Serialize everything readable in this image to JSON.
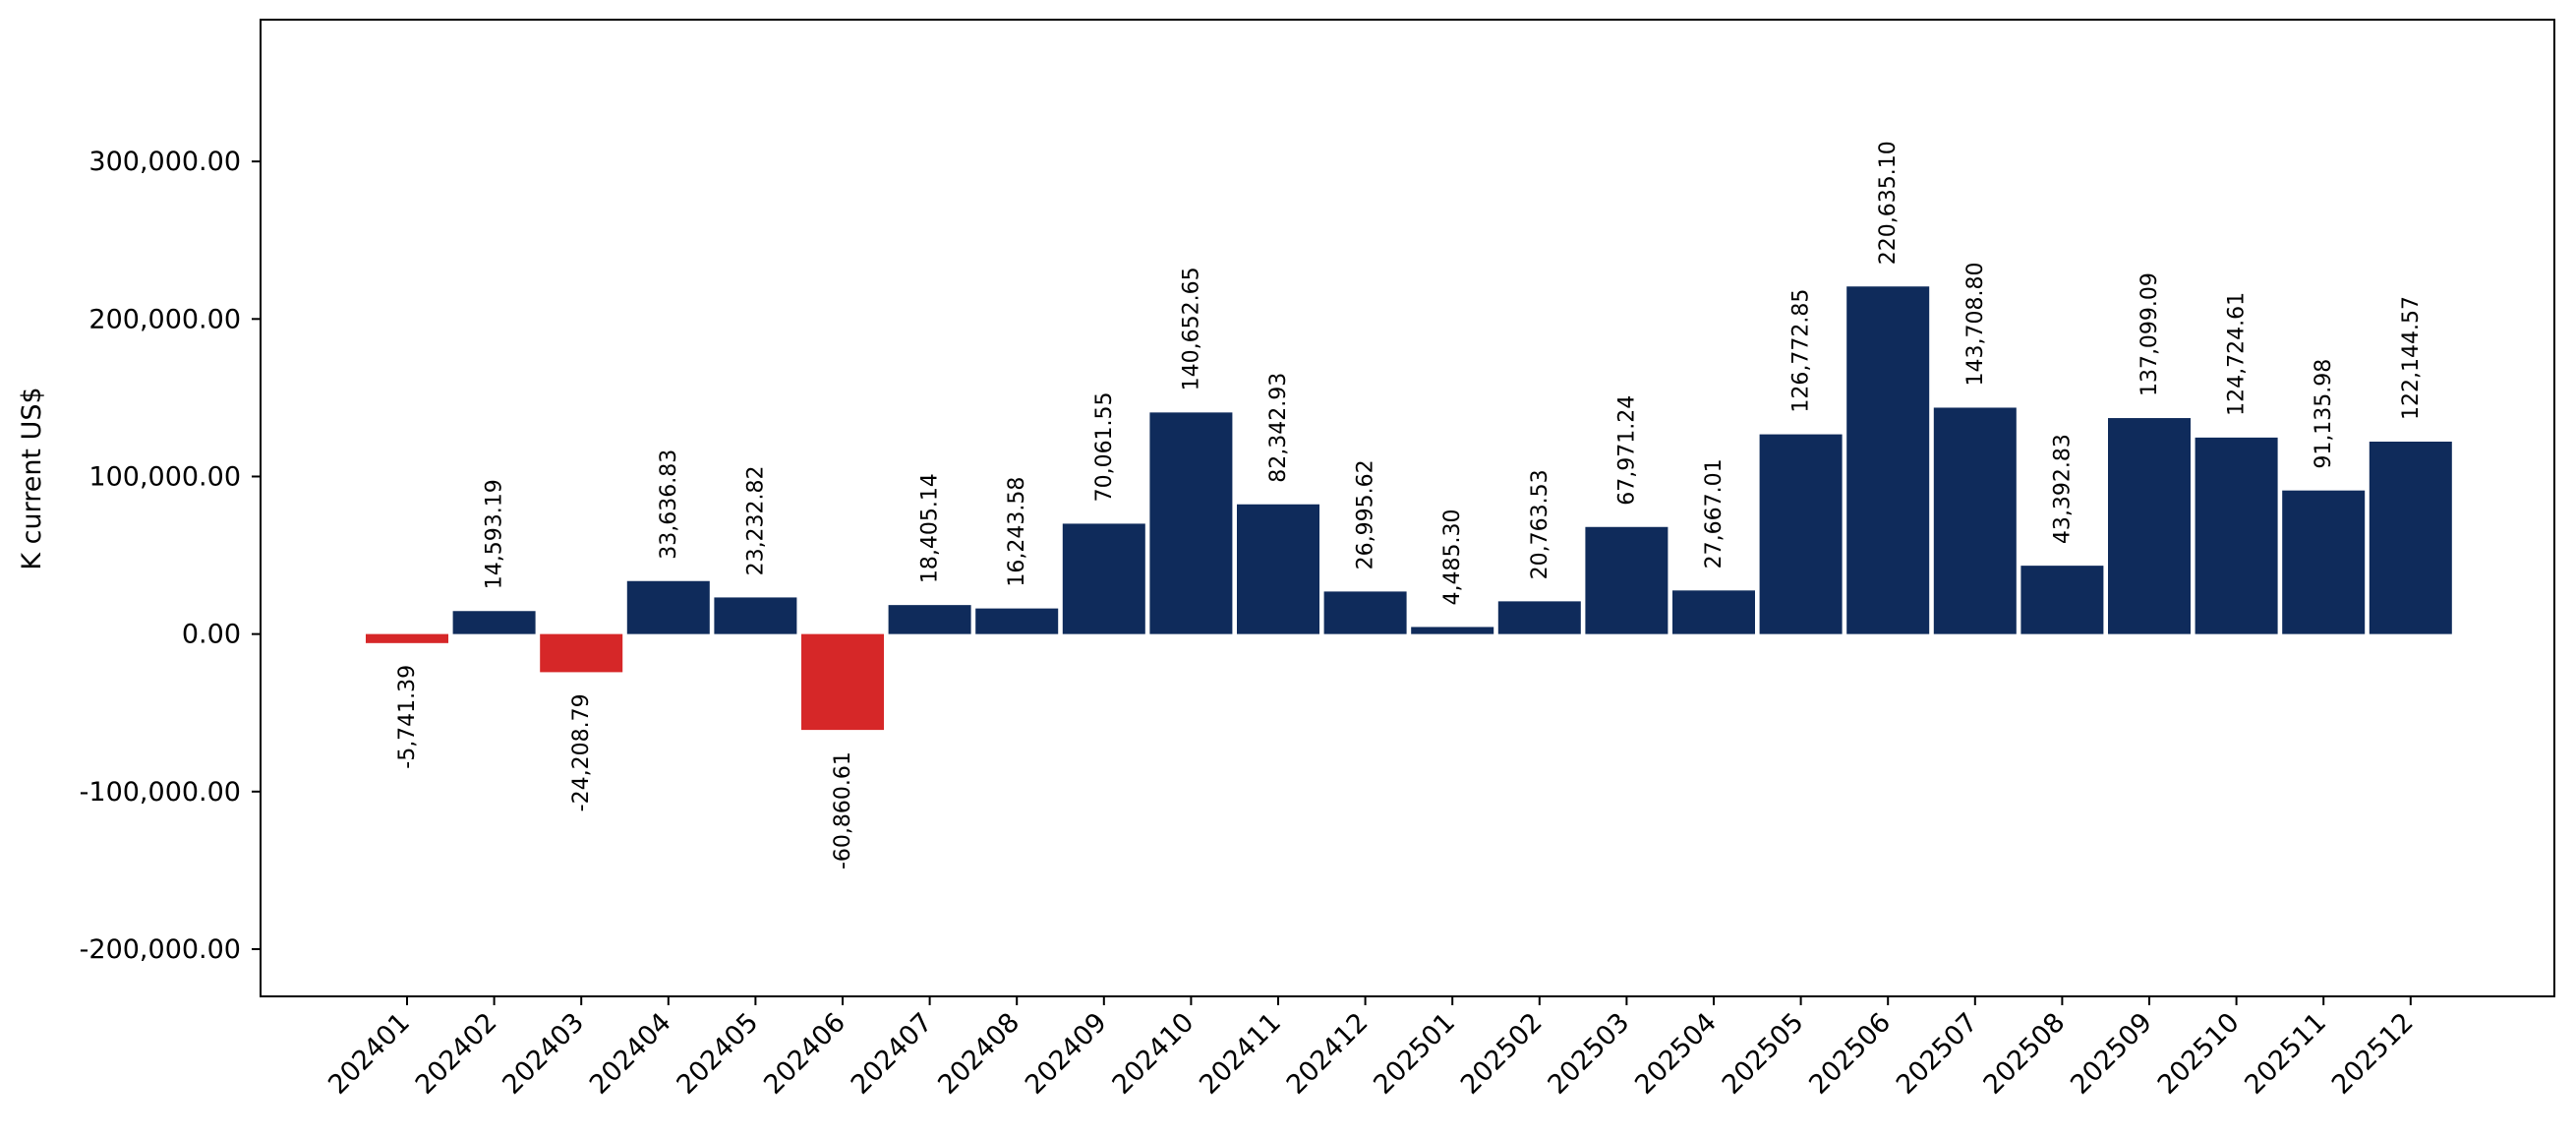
{
  "chart_data": {
    "type": "bar",
    "title": "",
    "xlabel": "",
    "ylabel": "K current US$",
    "categories": [
      "202401",
      "202402",
      "202403",
      "202404",
      "202405",
      "202406",
      "202407",
      "202408",
      "202409",
      "202410",
      "202411",
      "202412",
      "202501",
      "202502",
      "202503",
      "202504",
      "202505",
      "202506",
      "202507",
      "202508",
      "202509",
      "202510",
      "202511",
      "202512"
    ],
    "values": [
      -5741.39,
      14593.19,
      -24208.79,
      33636.83,
      23232.82,
      -60860.61,
      18405.14,
      16243.58,
      70061.55,
      140652.65,
      82342.93,
      26995.62,
      4485.3,
      20763.53,
      67971.24,
      27667.01,
      126772.85,
      220635.1,
      143708.8,
      43392.83,
      137099.09,
      124724.61,
      91135.98,
      122144.57
    ],
    "value_labels": [
      "-5,741.39",
      "14,593.19",
      "-24,208.79",
      "33,636.83",
      "23,232.82",
      "-60,860.61",
      "18,405.14",
      "16,243.58",
      "70,061.55",
      "140,652.65",
      "82,342.93",
      "26,995.62",
      "4,485.30",
      "20,763.53",
      "67,971.24",
      "27,667.01",
      "126,772.85",
      "220,635.10",
      "143,708.80",
      "43,392.83",
      "137,099.09",
      "124,724.61",
      "91,135.98",
      "122,144.57"
    ],
    "yticks": [
      -200000,
      -100000,
      0,
      100000,
      200000,
      300000
    ],
    "ytick_labels": [
      "-200,000.00",
      "-100,000.00",
      "0.00",
      "100,000.00",
      "200,000.00",
      "300,000.00"
    ],
    "ylim": [
      -230000,
      390000
    ],
    "grid": false,
    "colors": {
      "positive": "#0f2b5b",
      "negative": "#d62728"
    }
  }
}
